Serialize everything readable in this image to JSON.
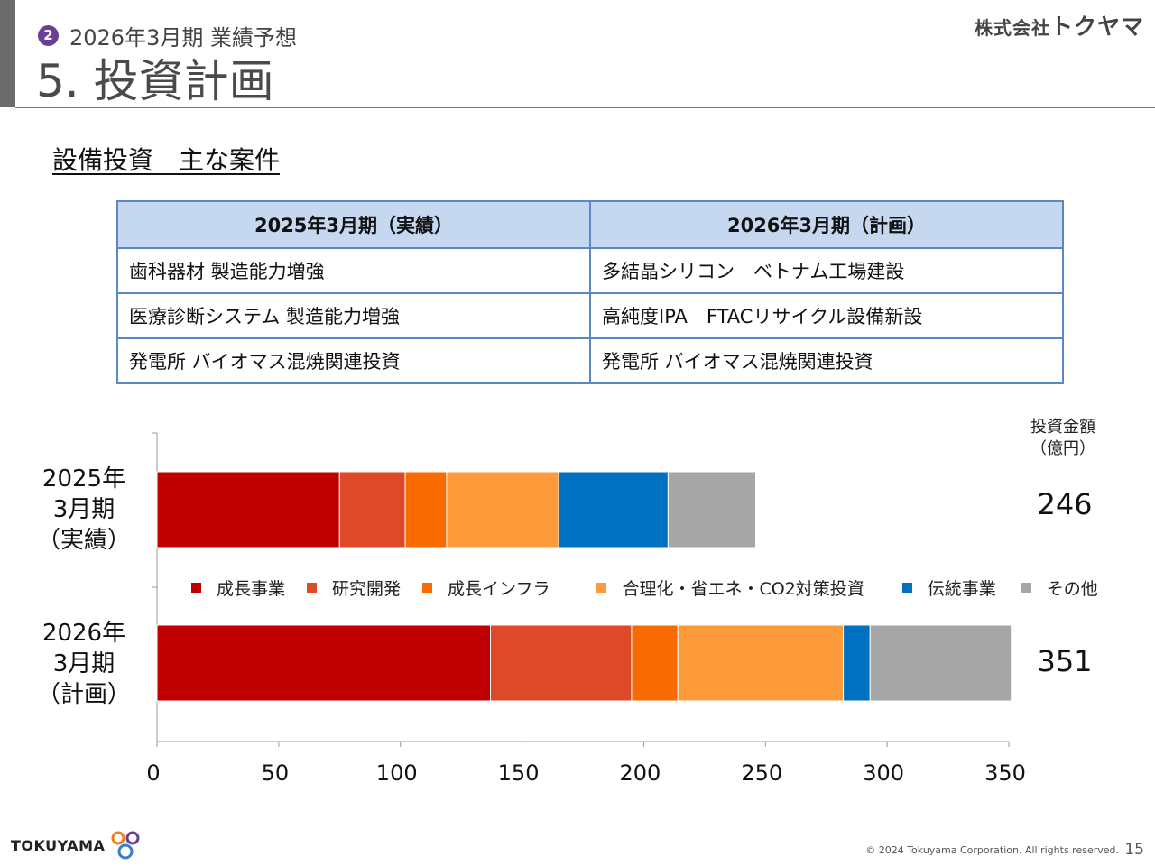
{
  "header": {
    "section_number": "2",
    "subtitle": "2026年3月期 業績予想",
    "title": "5. 投資計画",
    "company_logo": {
      "prefix": "株式会社",
      "name": "トクヤマ"
    }
  },
  "section_title": "設備投資　主な案件",
  "table": {
    "headers": [
      "2025年3月期（実績）",
      "2026年3月期（計画）"
    ],
    "rows": [
      [
        "歯科器材 製造能力増強",
        "多結晶シリコン　ベトナム工場建設"
      ],
      [
        "医療診断システム 製造能力増強",
        "高純度IPA　FTACリサイクル設備新設"
      ],
      [
        "発電所 バイオマス混焼関連投資",
        "発電所 バイオマス混焼関連投資"
      ]
    ]
  },
  "amount_header": {
    "line1": "投資金額",
    "line2": "（億円）"
  },
  "chart_data": {
    "type": "bar",
    "orientation": "horizontal",
    "stacked": true,
    "categories": [
      "2025年 3月期 （実績）",
      "2026年 3月期 （計画）"
    ],
    "category_lines": [
      [
        "2025年",
        "3月期",
        "（実績）"
      ],
      [
        "2026年",
        "3月期",
        "（計画）"
      ]
    ],
    "series": [
      {
        "name": "成長事業",
        "values": [
          75,
          137
        ],
        "color": "#c00000"
      },
      {
        "name": "研究開発",
        "values": [
          27,
          58
        ],
        "color": "#de4a28"
      },
      {
        "name": "成長インフラ",
        "values": [
          17,
          19
        ],
        "color": "#f96a00"
      },
      {
        "name": "合理化・省エネ・CO2対策投資",
        "values": [
          46,
          68
        ],
        "color": "#fd9a3a"
      },
      {
        "name": "伝統事業",
        "values": [
          45,
          11
        ],
        "color": "#0070c0"
      },
      {
        "name": "その他",
        "values": [
          36,
          58
        ],
        "color": "#a6a6a6"
      }
    ],
    "totals": [
      "246",
      "351"
    ],
    "xlim": [
      0,
      350
    ],
    "xticks": [
      "0",
      "50",
      "100",
      "150",
      "200",
      "250",
      "300",
      "350"
    ],
    "legend_position": "between bars",
    "grid": false
  },
  "footer": {
    "logo_text": "TOKUYAMA",
    "copyright": "© 2024 Tokuyama Corporation. All rights reserved.",
    "page_number": "15"
  }
}
